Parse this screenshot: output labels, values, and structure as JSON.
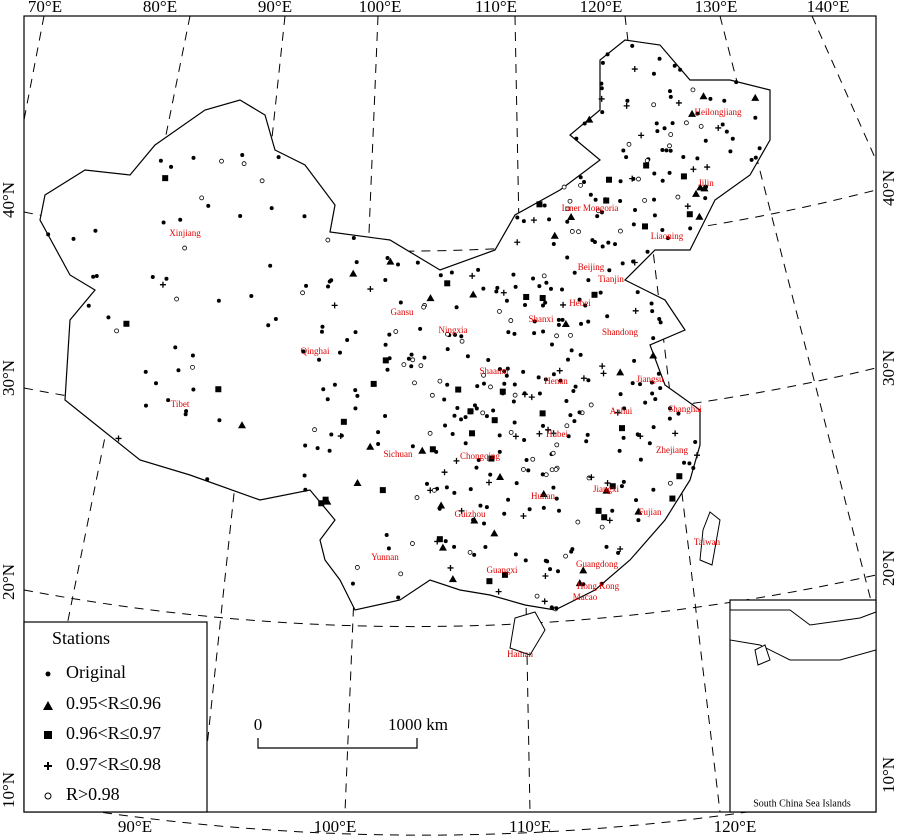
{
  "axes": {
    "top": [
      "70°E",
      "80°E",
      "90°E",
      "100°E",
      "110°E",
      "120°E",
      "130°E",
      "140°E"
    ],
    "bottom": [
      "90°E",
      "100°E",
      "110°E",
      "120°E"
    ],
    "left": [
      "40°N",
      "30°N",
      "20°N",
      "10°N"
    ],
    "right": [
      "40°N",
      "30°N",
      "20°N",
      "10°N"
    ]
  },
  "regions": [
    "Xinjiang",
    "Tibet",
    "Qinghai",
    "Gansu",
    "Ningxia",
    "Inner Mongoria",
    "Heilongjiang",
    "Jilin",
    "Liaoning",
    "Beijing",
    "Tianjin",
    "Hebei",
    "Shanxi",
    "Shandong",
    "Shaanxi",
    "Henan",
    "Jiangsu",
    "Anhui",
    "Shanghai",
    "Hubei",
    "Sichuan",
    "Chongqing",
    "Zhejiang",
    "Hunan",
    "Jiangxi",
    "Fujian",
    "Guizhou",
    "Yunnan",
    "Guangxi",
    "Guangdong",
    "Hong Kong",
    "Macao",
    "Taiwan",
    "Hainan"
  ],
  "legend": {
    "title": "Stations",
    "items": [
      "Original",
      "0.95<R≤0.96",
      "0.96<R≤0.97",
      "0.97<R≤0.98",
      "R>0.98"
    ]
  },
  "scale_bar": {
    "start": "0",
    "end": "1000 km"
  },
  "inset": {
    "label": "South China Sea Islands"
  }
}
